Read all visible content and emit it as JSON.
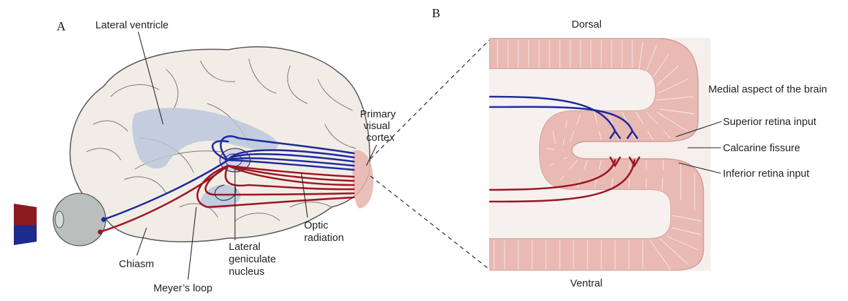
{
  "panels": {
    "a": "A",
    "b": "B"
  },
  "labels": {
    "lateral_ventricle": "Lateral ventricle",
    "primary_visual_cortex": [
      "Primary",
      "visual",
      "cortex"
    ],
    "chiasm": "Chiasm",
    "meyers_loop": "Meyer’s loop",
    "lgn": [
      "Lateral",
      "geniculate",
      "nucleus"
    ],
    "optic_radiation": [
      "Optic",
      "radiation"
    ],
    "dorsal": "Dorsal",
    "ventral": "Ventral",
    "medial_aspect": "Medial aspect of the brain",
    "superior_input": "Superior retina input",
    "calcarine": "Calcarine fissure",
    "inferior_input": "Inferior retina input"
  },
  "colors": {
    "upper_visual_field": "#8b1a1f",
    "lower_visual_field": "#1e2a8c",
    "blue_pathway": "#1e2a9c",
    "red_pathway": "#9c1622",
    "brain_fill": "#f2ece6",
    "ventricle": "#b6c6db",
    "cortex": "#e8b4ae"
  }
}
